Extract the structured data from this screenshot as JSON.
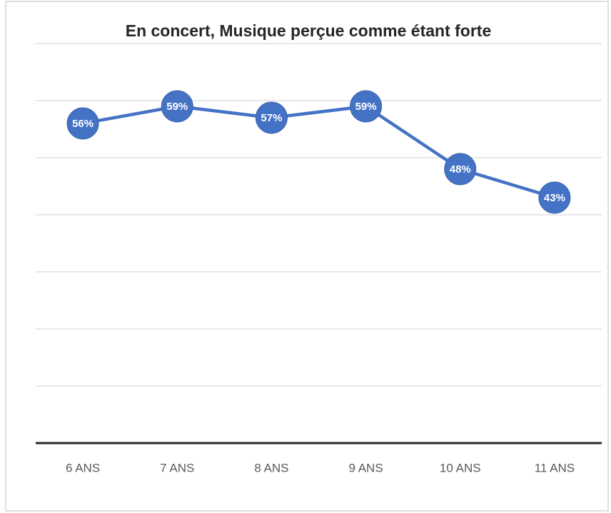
{
  "chart_data": {
    "type": "line",
    "title": "En concert, Musique perçue comme étant forte",
    "categories": [
      "6 ANS",
      "7 ANS",
      "8 ANS",
      "9 ANS",
      "10 ANS",
      "11 ANS"
    ],
    "series": [
      {
        "name": "Musique perçue comme étant forte",
        "color": "#4472c4",
        "values": [
          56,
          59,
          57,
          59,
          48,
          43
        ],
        "value_labels": [
          "56%",
          "59%",
          "57%",
          "59%",
          "48%",
          "43%"
        ]
      }
    ],
    "ylim": [
      0,
      70
    ],
    "yticks": [
      0,
      10,
      20,
      30,
      40,
      50,
      60,
      70
    ],
    "grid": true
  }
}
